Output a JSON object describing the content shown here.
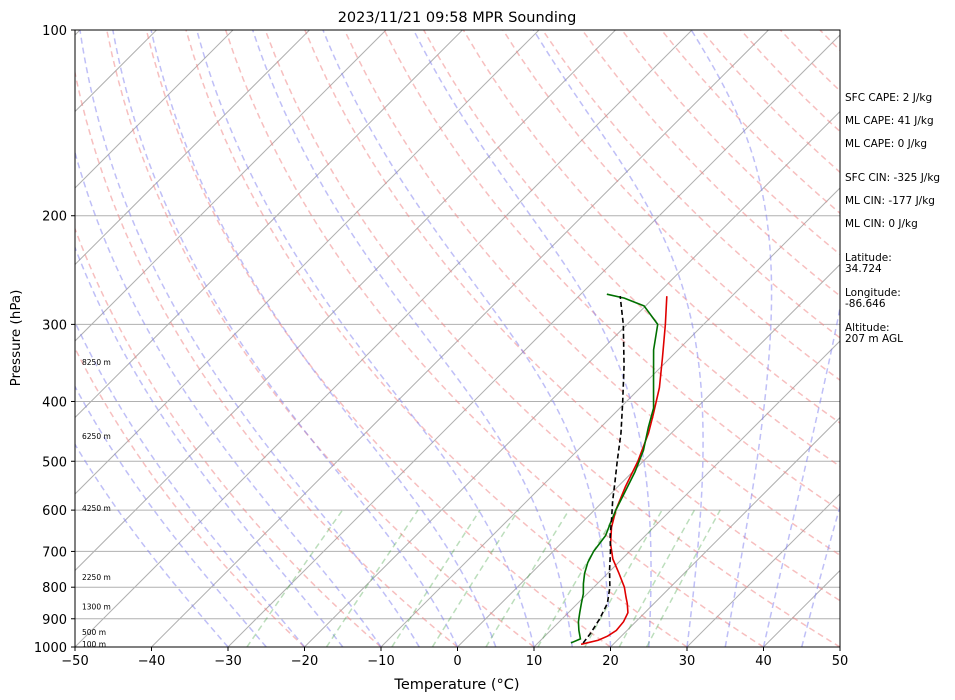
{
  "chart_data": {
    "type": "line",
    "title": "2023/11/21 09:58 MPR Sounding",
    "xlabel": "Temperature (°C)",
    "ylabel": "Pressure (hPa)",
    "xlim": [
      -50,
      50
    ],
    "ylim": [
      1000,
      100
    ],
    "yscale": "log",
    "skew": true,
    "grid": true,
    "x_ticks": [
      "−50",
      "−40",
      "−30",
      "−20",
      "−10",
      "0",
      "10",
      "20",
      "30",
      "40",
      "50"
    ],
    "x_tick_values": [
      -50,
      -40,
      -30,
      -20,
      -10,
      0,
      10,
      20,
      30,
      40,
      50
    ],
    "y_ticks": [
      "100",
      "200",
      "300",
      "400",
      "500",
      "600",
      "700",
      "800",
      "900",
      "1000"
    ],
    "y_tick_values": [
      100,
      200,
      300,
      400,
      500,
      600,
      700,
      800,
      900,
      1000
    ],
    "height_labels": [
      {
        "text": "100 m",
        "pressure": 988
      },
      {
        "text": "500 m",
        "pressure": 945
      },
      {
        "text": "1300 m",
        "pressure": 860
      },
      {
        "text": "2250 m",
        "pressure": 770
      },
      {
        "text": "4250 m",
        "pressure": 595
      },
      {
        "text": "6250 m",
        "pressure": 455
      },
      {
        "text": "8250 m",
        "pressure": 345
      }
    ],
    "series": [
      {
        "color": "#e00000",
        "pressure": [
          990,
          975,
          960,
          940,
          910,
          880,
          850,
          830,
          800,
          760,
          720,
          680,
          640,
          600,
          550,
          500,
          450,
          420,
          380,
          340,
          300,
          270
        ],
        "values": [
          15.8,
          17.5,
          18.2,
          18.6,
          18.4,
          17.8,
          16.5,
          15.5,
          14.0,
          11.5,
          8.8,
          6.5,
          4.5,
          2.8,
          1.0,
          -0.7,
          -3.0,
          -4.8,
          -7.5,
          -11.0,
          -15.0,
          -18.5
        ]
      },
      {
        "color": "#007000",
        "pressure": [
          985,
          970,
          940,
          910,
          880,
          850,
          820,
          790,
          760,
          730,
          700,
          660,
          630,
          600,
          560,
          520,
          480,
          440,
          410,
          370,
          330,
          300,
          280,
          272,
          268
        ],
        "values": [
          14.3,
          15.0,
          13.7,
          12.5,
          11.5,
          10.5,
          9.5,
          8.2,
          7.0,
          6.0,
          5.3,
          4.8,
          3.8,
          2.8,
          1.6,
          0.3,
          -1.4,
          -3.8,
          -5.6,
          -9.2,
          -13.2,
          -16.0,
          -20.2,
          -23.8,
          -26.6
        ]
      },
      {
        "color": "#000000",
        "dashed": true,
        "pressure": [
          985,
          950,
          900,
          850,
          800,
          750,
          700,
          660,
          620,
          580,
          540,
          500,
          450,
          400,
          350,
          300,
          270
        ],
        "values": [
          15.9,
          15.6,
          14.9,
          13.9,
          12.1,
          9.8,
          7.5,
          5.4,
          3.4,
          1.2,
          -1.0,
          -3.4,
          -6.6,
          -10.5,
          -15.0,
          -20.5,
          -24.6
        ]
      }
    ],
    "annotations": [
      "SFC CAPE: 2 J/kg",
      "ML CAPE: 41 J/kg",
      "ML CAPE: 0 J/kg",
      "SFC CIN: -325 J/kg",
      "ML CIN: -177 J/kg",
      "ML CIN: 0 J/kg",
      "Latitude:",
      "34.724",
      "Longitude:",
      "-86.646",
      "Altitude:",
      "207 m AGL"
    ]
  }
}
